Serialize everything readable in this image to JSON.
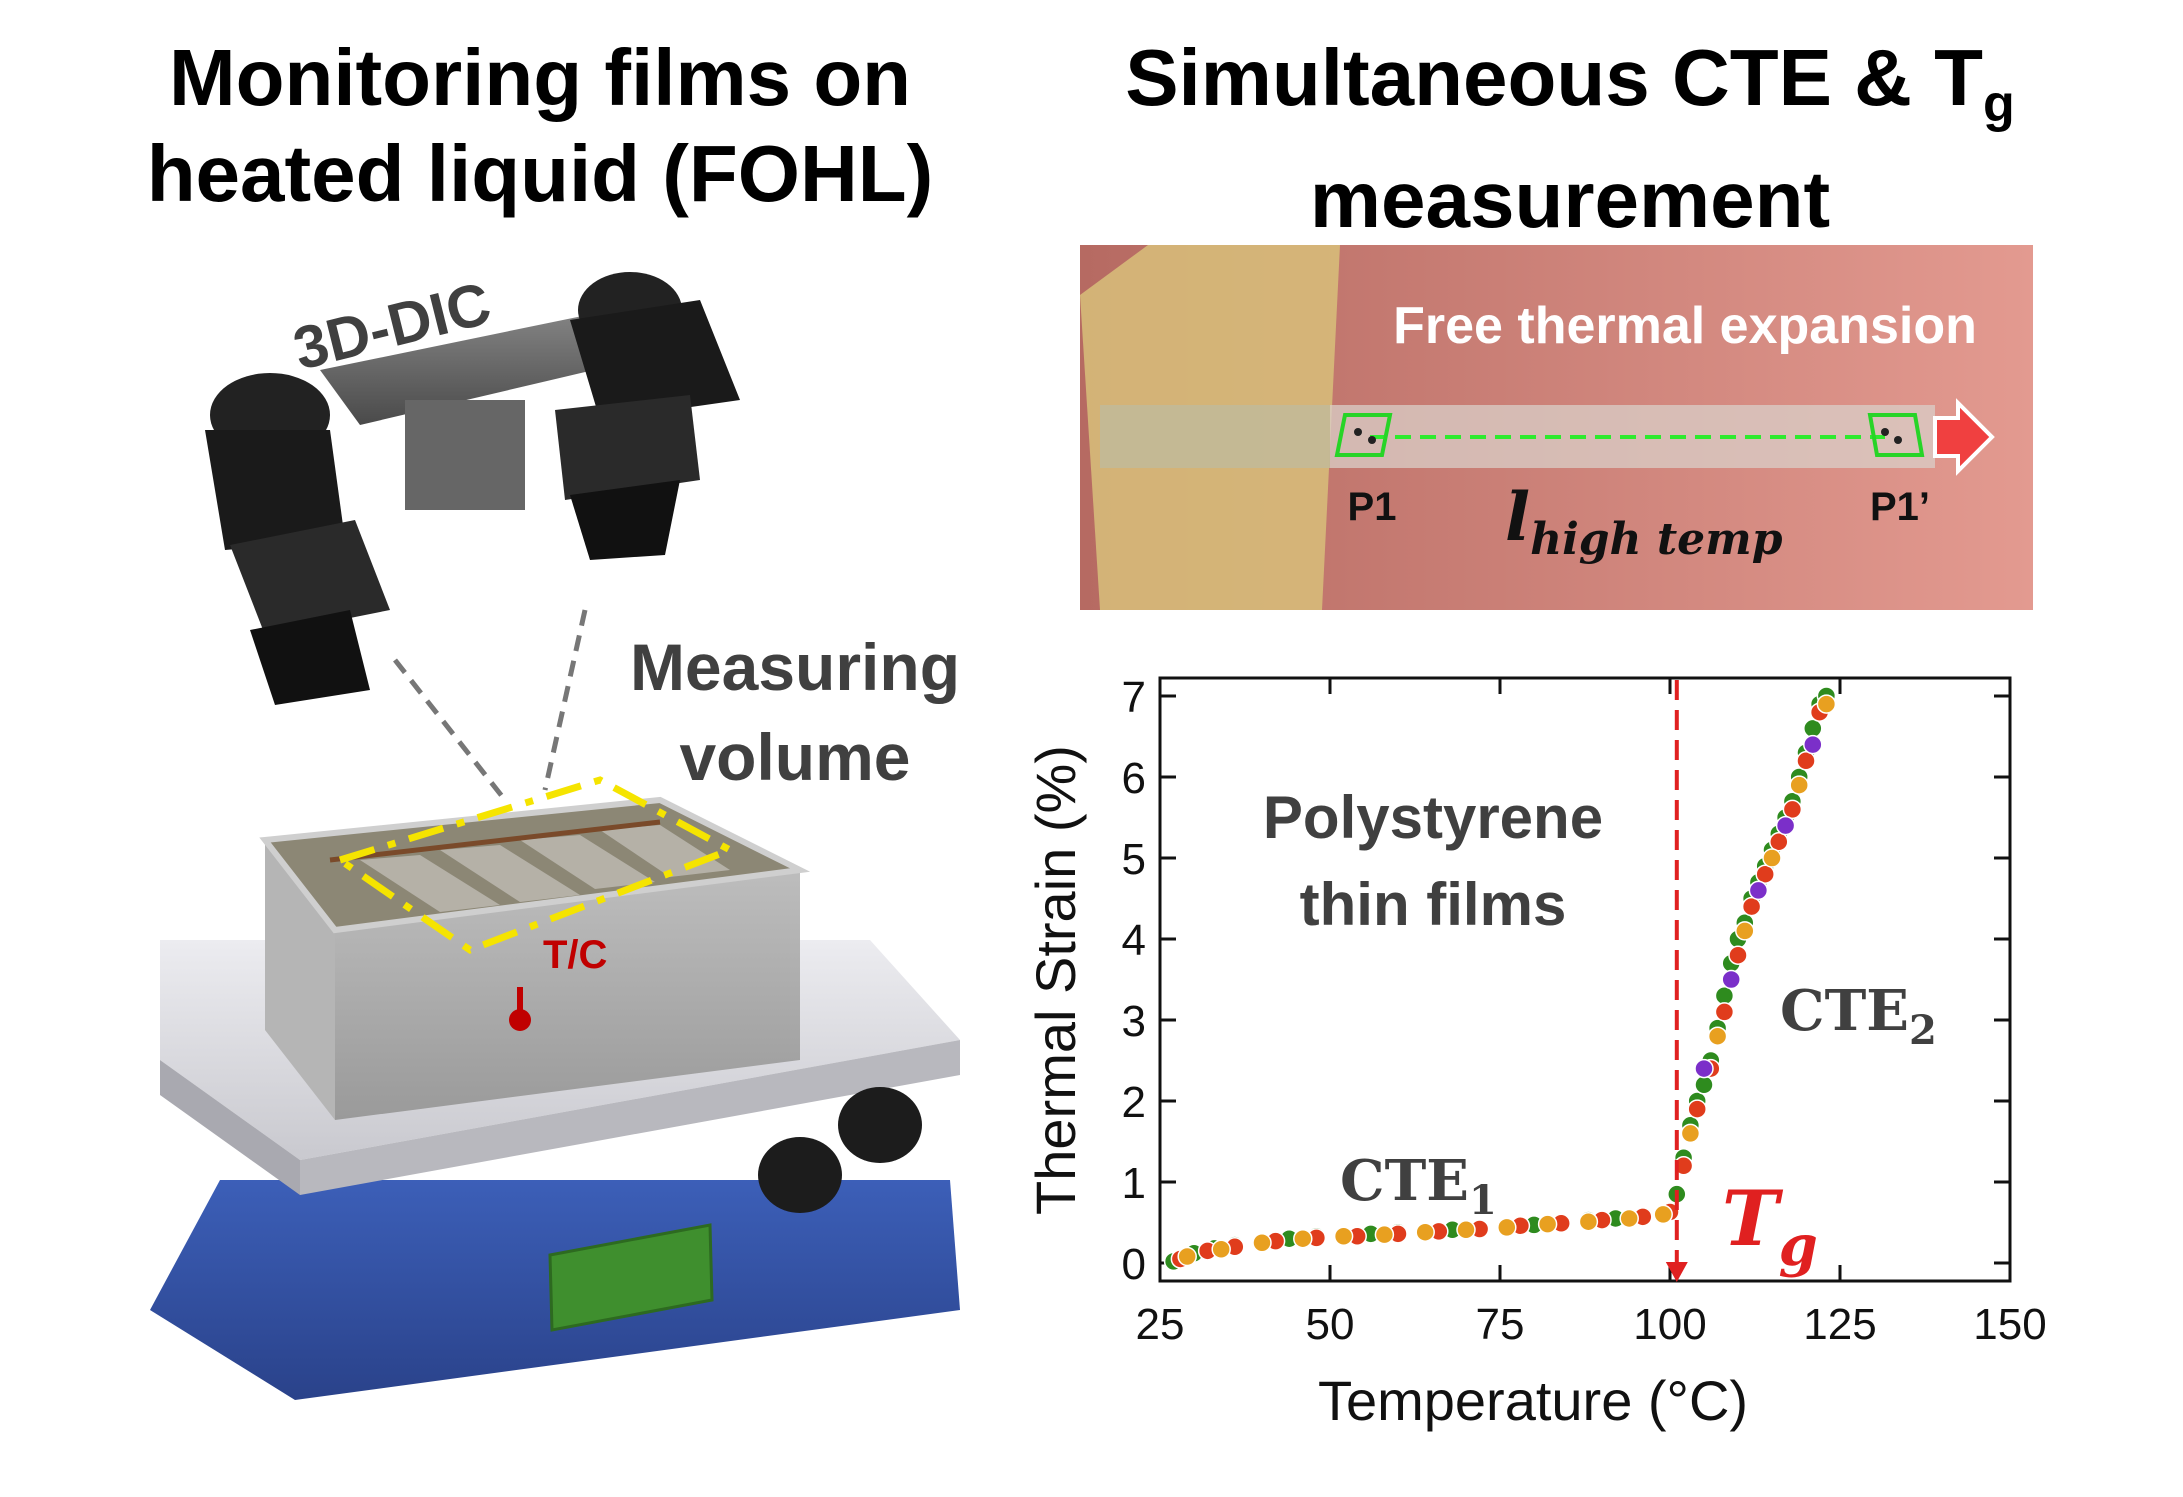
{
  "left_title": {
    "line1": "Monitoring films on",
    "line2": "heated liquid (FOHL)"
  },
  "right_title": {
    "line1_pre": "Simultaneous CTE & T",
    "line1_sub": "g",
    "line2": "measurement"
  },
  "labels": {
    "dic": "3D-DIC",
    "measuring_line1": "Measuring",
    "measuring_line2": "volume",
    "thermocouple": "T/C",
    "expansion": "Free thermal expansion",
    "p1": "P1",
    "p1_prime": "P1’",
    "length_main": "l",
    "length_sub": "high temp"
  },
  "chart_data": {
    "type": "scatter",
    "xlabel": "Temperature (°C)",
    "ylabel": "Thermal Strain (%)",
    "xlim": [
      25,
      150
    ],
    "ylim": [
      0,
      7
    ],
    "xticks": [
      25,
      50,
      75,
      100,
      125,
      150
    ],
    "yticks": [
      0,
      1,
      2,
      3,
      4,
      5,
      6,
      7
    ],
    "annotation": {
      "line1": "Polystyrene",
      "line2": "thin films"
    },
    "cte1": {
      "main": "CTE",
      "sub": "1"
    },
    "cte2": {
      "main": "CTE",
      "sub": "2"
    },
    "tg": {
      "main": "T",
      "sub": "g",
      "x": 101
    },
    "series": [
      {
        "color": "#2e8b1e",
        "x": [
          27,
          30,
          33,
          36,
          40,
          44,
          48,
          52,
          56,
          60,
          64,
          68,
          72,
          76,
          80,
          84,
          88,
          92,
          96,
          100,
          101,
          102,
          103,
          104,
          105,
          106,
          107,
          108,
          109,
          110,
          111,
          112,
          113,
          114,
          115,
          116,
          117,
          118,
          119,
          120,
          121,
          122,
          123
        ],
        "y": [
          0.02,
          0.12,
          0.18,
          0.22,
          0.26,
          0.3,
          0.33,
          0.34,
          0.36,
          0.38,
          0.39,
          0.41,
          0.43,
          0.45,
          0.47,
          0.5,
          0.53,
          0.55,
          0.58,
          0.62,
          0.85,
          1.3,
          1.7,
          2.0,
          2.2,
          2.5,
          2.9,
          3.3,
          3.7,
          4.0,
          4.2,
          4.5,
          4.7,
          4.9,
          5.1,
          5.3,
          5.5,
          5.7,
          6.0,
          6.3,
          6.6,
          6.9,
          7.0
        ]
      },
      {
        "color": "#e03c1c",
        "x": [
          28,
          32,
          36,
          42,
          48,
          54,
          60,
          66,
          72,
          78,
          84,
          90,
          96,
          100,
          102,
          104,
          106,
          108,
          110,
          112,
          114,
          116,
          118,
          120,
          122
        ],
        "y": [
          0.05,
          0.15,
          0.2,
          0.27,
          0.31,
          0.33,
          0.36,
          0.39,
          0.42,
          0.46,
          0.49,
          0.53,
          0.57,
          0.63,
          1.2,
          1.9,
          2.4,
          3.1,
          3.8,
          4.4,
          4.8,
          5.2,
          5.6,
          6.2,
          6.8
        ]
      },
      {
        "color": "#e8a020",
        "x": [
          29,
          34,
          40,
          46,
          52,
          58,
          64,
          70,
          76,
          82,
          88,
          94,
          99,
          103,
          107,
          111,
          115,
          119,
          123
        ],
        "y": [
          0.08,
          0.17,
          0.25,
          0.3,
          0.33,
          0.35,
          0.38,
          0.41,
          0.44,
          0.48,
          0.51,
          0.55,
          0.6,
          1.6,
          2.8,
          4.1,
          5.0,
          5.9,
          6.9
        ]
      },
      {
        "color": "#7b2fc9",
        "x": [
          105,
          109,
          113,
          117,
          121
        ],
        "y": [
          2.4,
          3.5,
          4.6,
          5.4,
          6.4
        ]
      }
    ]
  }
}
